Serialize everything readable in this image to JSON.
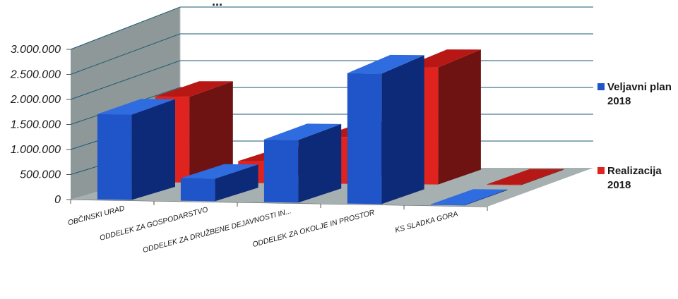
{
  "chart_data": {
    "type": "bar",
    "title": "...",
    "categories": [
      "OBČINSKI URAD",
      "ODDELEK ZA GOSPODARSTVO",
      "ODDELEK ZA DRUŽBENE DEJAVNOSTI IN...",
      "ODDELEK ZA OKOLJE IN PROSTOR",
      "KS SLADKA GORA"
    ],
    "series": [
      {
        "name": "Veljavni plan 2018",
        "values": [
          1700000,
          450000,
          1250000,
          2600000,
          5000
        ]
      },
      {
        "name": "Realizacija 2018",
        "values": [
          1650000,
          420000,
          900000,
          2250000,
          4000
        ]
      }
    ],
    "ylim": [
      0,
      3000000
    ],
    "y_ticks": [
      "0",
      "500.000",
      "1.000.000",
      "1.500.000",
      "2.000.000",
      "2.500.000",
      "3.000.000"
    ],
    "grid": true,
    "legend_position": "right",
    "colors": {
      "series0_front": "#1f55c9",
      "series0_side": "#0c2a78",
      "series0_top": "#2f6ce0",
      "series1_front": "#e0231e",
      "series1_side": "#6f1212",
      "series1_top": "#b81815",
      "back_wall": "#ffffff",
      "side_wall": "#8e9898",
      "floor": "#a6b0b0",
      "grid": "#1b5a73"
    }
  }
}
